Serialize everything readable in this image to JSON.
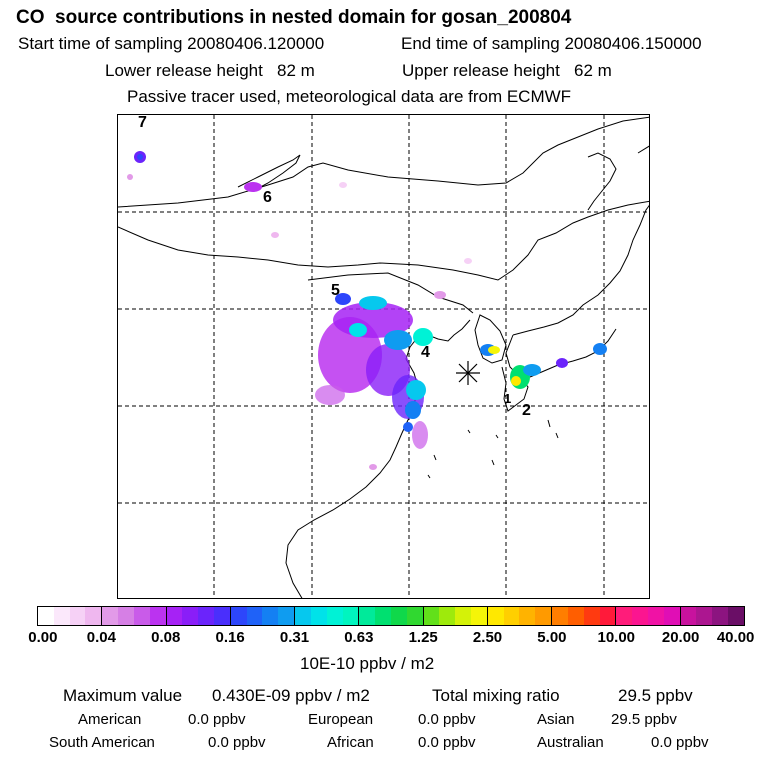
{
  "title": "CO  source contributions in nested domain for gosan_200804",
  "header": {
    "start_label": "Start time of sampling 20080406.120000",
    "end_label": "End time of sampling 20080406.150000",
    "lower_label": "Lower release height   82 m",
    "upper_label": "Upper release height   62 m",
    "note": "Passive tracer used, meteorological data are from ECMWF"
  },
  "map": {
    "region_labels": [
      "7",
      "6",
      "5",
      "4",
      "1",
      "2"
    ],
    "receptor_marker": "asterisk-icon"
  },
  "colorbar": {
    "ticks": [
      "0.00",
      "0.04",
      "0.08",
      "0.16",
      "0.31",
      "0.63",
      "1.25",
      "2.50",
      "5.00",
      "10.00",
      "20.00",
      "40.00"
    ],
    "unit": "10E-10 ppbv / m2",
    "colors": [
      [
        "#ffffff",
        "#fbe8fb",
        "#f6d1f6",
        "#efb7ef"
      ],
      [
        "#e29ae8",
        "#d67fe5",
        "#c95be9",
        "#bb33f0"
      ],
      [
        "#a622f5",
        "#8a1ef8",
        "#6b24fb",
        "#4a2ffc"
      ],
      [
        "#2d46fb",
        "#1f62f8",
        "#1480f3",
        "#0f9cf0"
      ],
      [
        "#06c8ee",
        "#00e2e9",
        "#00f2d6",
        "#00f5bf"
      ],
      [
        "#00ea9a",
        "#00e070",
        "#10d84a",
        "#30d830"
      ],
      [
        "#62e01a",
        "#9eea0c",
        "#d4f208",
        "#f5f508"
      ],
      [
        "#ffe800",
        "#ffcf00",
        "#ffb300",
        "#ff9a00"
      ],
      [
        "#ff7e00",
        "#ff5e00",
        "#ff3a10",
        "#ff1a3a"
      ],
      [
        "#ff1c7a",
        "#fb1590",
        "#f012a5",
        "#e00eb5"
      ],
      [
        "#c8129e",
        "#ac1690",
        "#8c1480",
        "#6a0e66"
      ]
    ]
  },
  "summary": {
    "max_label": "Maximum value",
    "max_value": "0.430E-09 ppbv / m2",
    "total_label": "Total mixing ratio",
    "total_value": "29.5 ppbv",
    "regions": [
      {
        "name": "American",
        "value": "0.0 ppbv"
      },
      {
        "name": "European",
        "value": "0.0 ppbv"
      },
      {
        "name": "Asian",
        "value": "29.5 ppbv"
      },
      {
        "name": "South American",
        "value": "0.0 ppbv"
      },
      {
        "name": "African",
        "value": "0.0 ppbv"
      },
      {
        "name": "Australian",
        "value": "0.0 ppbv"
      }
    ]
  }
}
